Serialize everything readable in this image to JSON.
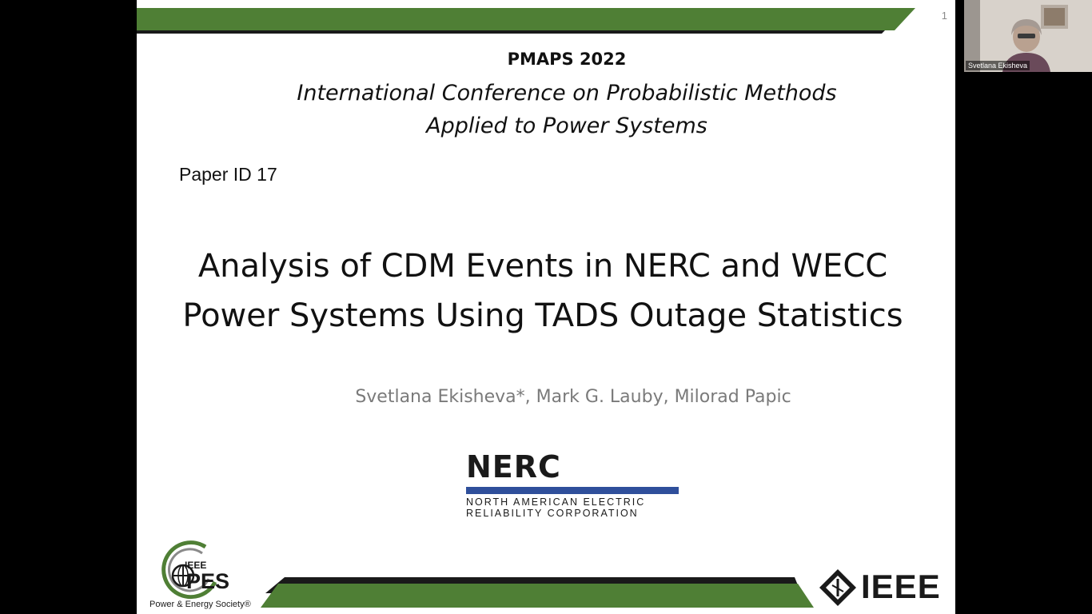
{
  "slide": {
    "number": "1",
    "conference_short": "PMAPS 2022",
    "conference_line1": "International Conference on Probabilistic Methods",
    "conference_line2": "Applied to Power Systems",
    "paper_id": "Paper ID 17",
    "title_line1": "Analysis of CDM Events in NERC and WECC",
    "title_line2": "Power Systems Using TADS Outage Statistics",
    "authors": "Svetlana Ekisheva*, Mark G. Lauby, Milorad Papic",
    "logos": {
      "nerc_word": "NERC",
      "nerc_line1": "NORTH AMERICAN ELECTRIC",
      "nerc_line2": "RELIABILITY CORPORATION",
      "pes_ieee": "IEEE",
      "pes_word": "PES",
      "pes_sub": "Power & Energy Society®",
      "ieee_word": "IEEE"
    }
  },
  "video": {
    "participant_name": "Svetlana Ekisheva"
  },
  "colors": {
    "accent_green": "#4f7f35",
    "bar_black": "#1a1a1a",
    "nerc_blue": "#2f4f9b"
  }
}
